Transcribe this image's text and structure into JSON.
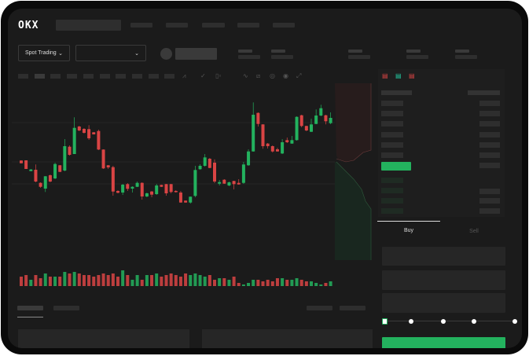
{
  "header": {
    "logo": "OKX",
    "nav_items": 5
  },
  "market_bar": {
    "mode_dropdown": "Spot Trading",
    "pair_dropdown": ""
  },
  "toolbar": {
    "icons": [
      "indicator-icon",
      "chart-type-icon",
      "ruler-icon",
      "camera-icon",
      "settings-icon",
      "fullscreen-icon"
    ]
  },
  "trade_form": {
    "tabs": [
      "Buy",
      "Sell"
    ],
    "active_tab": "Buy",
    "leverage_slider": 0
  },
  "colors": {
    "up": "#23b25e",
    "down": "#d94444",
    "background": "#1b1b1b",
    "accent": "#23b25e"
  },
  "chart_data": {
    "type": "candlestick",
    "candles": [
      [
        66.7,
        63.3,
        67,
        63
      ],
      [
        67,
        56,
        67,
        56
      ],
      [
        53.3,
        55.3,
        56,
        53
      ],
      [
        55,
        40,
        61.7,
        39
      ],
      [
        38.3,
        33.3,
        39,
        32
      ],
      [
        31,
        46.7,
        47,
        26.7
      ],
      [
        48,
        40,
        49,
        39
      ],
      [
        44,
        62.3,
        64,
        43
      ],
      [
        60.7,
        52.3,
        61,
        52
      ],
      [
        54,
        85,
        94,
        53
      ],
      [
        84.3,
        74,
        86,
        73
      ],
      [
        75,
        108.3,
        121.7,
        75
      ],
      [
        110,
        105,
        111,
        104
      ],
      [
        107,
        102,
        108,
        101
      ],
      [
        106.7,
        95,
        111.7,
        93
      ],
      [
        102.7,
        100,
        103,
        100
      ],
      [
        104.3,
        80.7,
        106,
        80
      ],
      [
        80.7,
        56.7,
        81,
        56
      ],
      [
        60.7,
        58,
        61,
        56
      ],
      [
        58.3,
        27.3,
        60,
        22
      ],
      [
        28,
        25.7,
        29,
        25
      ],
      [
        26,
        36,
        37,
        23
      ],
      [
        36.7,
        30.7,
        38,
        28
      ],
      [
        31,
        33.3,
        34,
        26
      ],
      [
        33.3,
        38.3,
        40,
        33
      ],
      [
        38.3,
        21,
        39,
        17
      ],
      [
        21,
        25,
        26,
        20
      ],
      [
        27.3,
        23.3,
        28,
        20
      ],
      [
        24,
        35,
        37,
        23
      ],
      [
        35.7,
        33.3,
        36,
        33
      ],
      [
        36.7,
        25,
        37,
        22
      ],
      [
        36.7,
        26.7,
        37,
        25
      ],
      [
        28,
        26.7,
        29,
        26
      ],
      [
        26,
        13.3,
        28,
        13
      ],
      [
        15.7,
        13.3,
        16,
        13
      ],
      [
        13.3,
        20.7,
        21,
        12
      ],
      [
        21.7,
        54.7,
        60,
        20
      ],
      [
        55.7,
        60,
        62,
        55
      ],
      [
        60,
        70.7,
        75,
        59
      ],
      [
        69,
        57.3,
        70,
        57
      ],
      [
        64,
        40,
        68.3,
        38
      ],
      [
        37.3,
        39.3,
        42,
        35
      ],
      [
        42.3,
        37.3,
        43,
        37
      ],
      [
        35,
        39,
        40,
        34
      ],
      [
        40.7,
        36.7,
        41,
        30
      ],
      [
        38.3,
        36.3,
        43,
        36
      ],
      [
        38.3,
        61.7,
        65,
        37
      ],
      [
        60.7,
        78.3,
        81,
        60
      ],
      [
        78.3,
        125,
        140.7,
        78
      ],
      [
        127.3,
        113.3,
        128,
        110
      ],
      [
        112.7,
        85,
        113,
        81.7
      ],
      [
        88.3,
        85,
        89,
        82
      ],
      [
        85,
        78.3,
        86,
        77
      ],
      [
        81,
        78.3,
        83,
        78
      ],
      [
        75.7,
        90,
        94,
        75
      ],
      [
        92.7,
        90,
        96,
        89
      ],
      [
        88.3,
        92.7,
        98,
        88
      ],
      [
        92.7,
        122.3,
        123,
        92
      ],
      [
        124.3,
        110.7,
        125,
        109
      ],
      [
        110.7,
        105,
        111,
        104
      ],
      [
        103.3,
        112.7,
        120,
        103
      ],
      [
        113.3,
        124,
        131.7,
        113
      ],
      [
        124,
        133.3,
        137.7,
        123
      ],
      [
        124.3,
        116.7,
        125,
        112.7
      ],
      [
        114.3,
        121,
        128,
        113
      ]
    ],
    "volumes": [
      6,
      7,
      4,
      7,
      5,
      8,
      6,
      6,
      6,
      9,
      8,
      9,
      8,
      7,
      7,
      6,
      7,
      8,
      7,
      8,
      6,
      10,
      7,
      4,
      7,
      4,
      7,
      7,
      8,
      6,
      7,
      8,
      7,
      6,
      8,
      7,
      8,
      7,
      6,
      7,
      4,
      5,
      5,
      4,
      6,
      2,
      1,
      2,
      4,
      4,
      3,
      4,
      3,
      5,
      5,
      4,
      4,
      5,
      4,
      3,
      3,
      2,
      1,
      2,
      3
    ]
  }
}
